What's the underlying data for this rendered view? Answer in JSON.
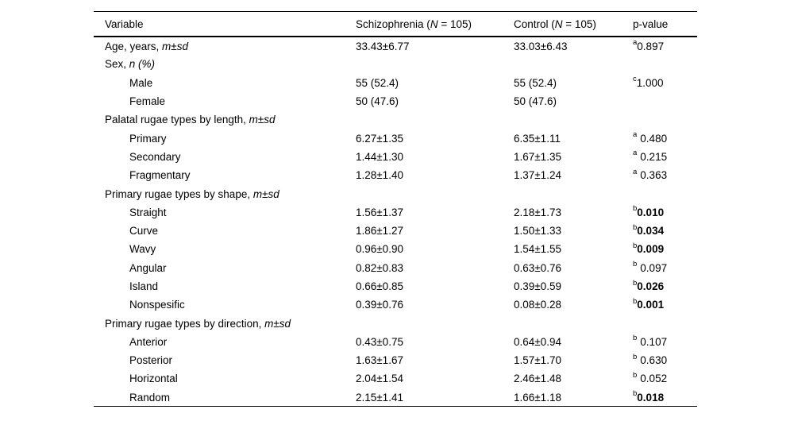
{
  "table": {
    "columns": {
      "variable": "Variable",
      "schizophrenia": {
        "pre": "Schizophrenia (",
        "italic": "N",
        "post": " = 105)"
      },
      "control": {
        "pre": "Control (",
        "italic": "N",
        "post": " = 105)"
      },
      "p_value": "p-value"
    },
    "rows": [
      {
        "name": "Age, years, ",
        "name_italic": "m±sd",
        "indent": 0,
        "schizophrenia": "33.43±6.77",
        "control": "33.03±6.43",
        "p_sup": "a",
        "p": "0.897",
        "p_gap": false,
        "p_bold": false
      },
      {
        "name": "Sex, ",
        "name_italic": "n (%)",
        "indent": 0,
        "schizophrenia": "",
        "control": "",
        "p_sup": "",
        "p": "",
        "p_gap": false,
        "p_bold": false
      },
      {
        "name": "Male",
        "name_italic": "",
        "indent": 1,
        "schizophrenia": "55 (52.4)",
        "control": "55 (52.4)",
        "p_sup": "c",
        "p": "1.000",
        "p_gap": false,
        "p_bold": false
      },
      {
        "name": "Female",
        "name_italic": "",
        "indent": 1,
        "schizophrenia": "50 (47.6)",
        "control": "50 (47.6)",
        "p_sup": "",
        "p": "",
        "p_gap": false,
        "p_bold": false
      },
      {
        "name": "Palatal rugae types by length, ",
        "name_italic": "m±sd",
        "indent": 0,
        "schizophrenia": "",
        "control": "",
        "p_sup": "",
        "p": "",
        "p_gap": false,
        "p_bold": false
      },
      {
        "name": "Primary",
        "name_italic": "",
        "indent": 1,
        "schizophrenia": "6.27±1.35",
        "control": "6.35±1.11",
        "p_sup": "a",
        "p": "0.480",
        "p_gap": true,
        "p_bold": false
      },
      {
        "name": "Secondary",
        "name_italic": "",
        "indent": 1,
        "schizophrenia": "1.44±1.30",
        "control": "1.67±1.35",
        "p_sup": "a",
        "p": "0.215",
        "p_gap": true,
        "p_bold": false
      },
      {
        "name": "Fragmentary",
        "name_italic": "",
        "indent": 1,
        "schizophrenia": "1.28±1.40",
        "control": "1.37±1.24",
        "p_sup": "a",
        "p": "0.363",
        "p_gap": true,
        "p_bold": false
      },
      {
        "name": "Primary rugae types by shape, ",
        "name_italic": "m±sd",
        "indent": 0,
        "schizophrenia": "",
        "control": "",
        "p_sup": "",
        "p": "",
        "p_gap": false,
        "p_bold": false
      },
      {
        "name": "Straight",
        "name_italic": "",
        "indent": 1,
        "schizophrenia": "1.56±1.37",
        "control": "2.18±1.73",
        "p_sup": "b",
        "p": "0.010",
        "p_gap": false,
        "p_bold": true
      },
      {
        "name": "Curve",
        "name_italic": "",
        "indent": 1,
        "schizophrenia": "1.86±1.27",
        "control": "1.50±1.33",
        "p_sup": "b",
        "p": "0.034",
        "p_gap": false,
        "p_bold": true
      },
      {
        "name": "Wavy",
        "name_italic": "",
        "indent": 1,
        "schizophrenia": "0.96±0.90",
        "control": "1.54±1.55",
        "p_sup": "b",
        "p": "0.009",
        "p_gap": false,
        "p_bold": true
      },
      {
        "name": "Angular",
        "name_italic": "",
        "indent": 1,
        "schizophrenia": "0.82±0.83",
        "control": "0.63±0.76",
        "p_sup": "b",
        "p": "0.097",
        "p_gap": true,
        "p_bold": false
      },
      {
        "name": "Island",
        "name_italic": "",
        "indent": 1,
        "schizophrenia": "0.66±0.85",
        "control": "0.39±0.59",
        "p_sup": "b",
        "p": "0.026",
        "p_gap": false,
        "p_bold": true
      },
      {
        "name": "Nonspesific",
        "name_italic": "",
        "indent": 1,
        "schizophrenia": "0.39±0.76",
        "control": "0.08±0.28",
        "p_sup": "b",
        "p": "0.001",
        "p_gap": false,
        "p_bold": true
      },
      {
        "name": "Primary rugae types by direction, ",
        "name_italic": "m±sd",
        "indent": 0,
        "schizophrenia": "",
        "control": "",
        "p_sup": "",
        "p": "",
        "p_gap": false,
        "p_bold": false
      },
      {
        "name": "Anterior",
        "name_italic": "",
        "indent": 1,
        "schizophrenia": "0.43±0.75",
        "control": "0.64±0.94",
        "p_sup": "b",
        "p": "0.107",
        "p_gap": true,
        "p_bold": false
      },
      {
        "name": "Posterior",
        "name_italic": "",
        "indent": 1,
        "schizophrenia": "1.63±1.67",
        "control": "1.57±1.70",
        "p_sup": "b",
        "p": "0.630",
        "p_gap": true,
        "p_bold": false
      },
      {
        "name": "Horizontal",
        "name_italic": "",
        "indent": 1,
        "schizophrenia": "2.04±1.54",
        "control": "2.46±1.48",
        "p_sup": "b",
        "p": "0.052",
        "p_gap": true,
        "p_bold": false
      },
      {
        "name": "Random",
        "name_italic": "",
        "indent": 1,
        "schizophrenia": "2.15±1.41",
        "control": "1.66±1.18",
        "p_sup": "b",
        "p": "0.018",
        "p_gap": false,
        "p_bold": true
      }
    ]
  },
  "colors": {
    "text": "#000000",
    "background": "#ffffff",
    "rule": "#000000"
  }
}
